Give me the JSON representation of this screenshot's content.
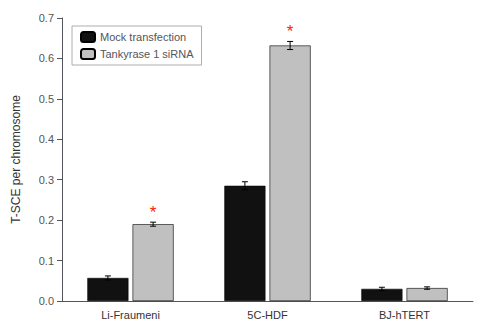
{
  "chart_data": {
    "type": "bar",
    "categories": [
      "Li-Fraumeni",
      "5C-HDF",
      "BJ-hTERT"
    ],
    "series": [
      {
        "name": "Mock transfection",
        "color": "#111111",
        "values": [
          0.057,
          0.285,
          0.03
        ],
        "errors": [
          0.005,
          0.01,
          0.004
        ]
      },
      {
        "name": "Tankyrase 1 siRNA",
        "color": "#c0c0c0",
        "values": [
          0.19,
          0.632,
          0.032
        ],
        "errors": [
          0.005,
          0.01,
          0.003
        ]
      }
    ],
    "ylabel": "T-SCE per chromosome",
    "ylim": [
      0,
      0.7
    ],
    "yticks": [
      {
        "value": 0,
        "label": "0.0"
      },
      0.1,
      0.2,
      0.3,
      0.4,
      0.5,
      0.6,
      0.7
    ],
    "annotations": [
      {
        "text": "*",
        "category": "Li-Fraumeni",
        "series": "Tankyrase 1 siRNA",
        "color": "#ff2200"
      },
      {
        "text": "*",
        "category": "5C-HDF",
        "series": "Tankyrase 1 siRNA",
        "color": "#ff2200"
      }
    ],
    "legend": "upper left",
    "grid": false
  }
}
